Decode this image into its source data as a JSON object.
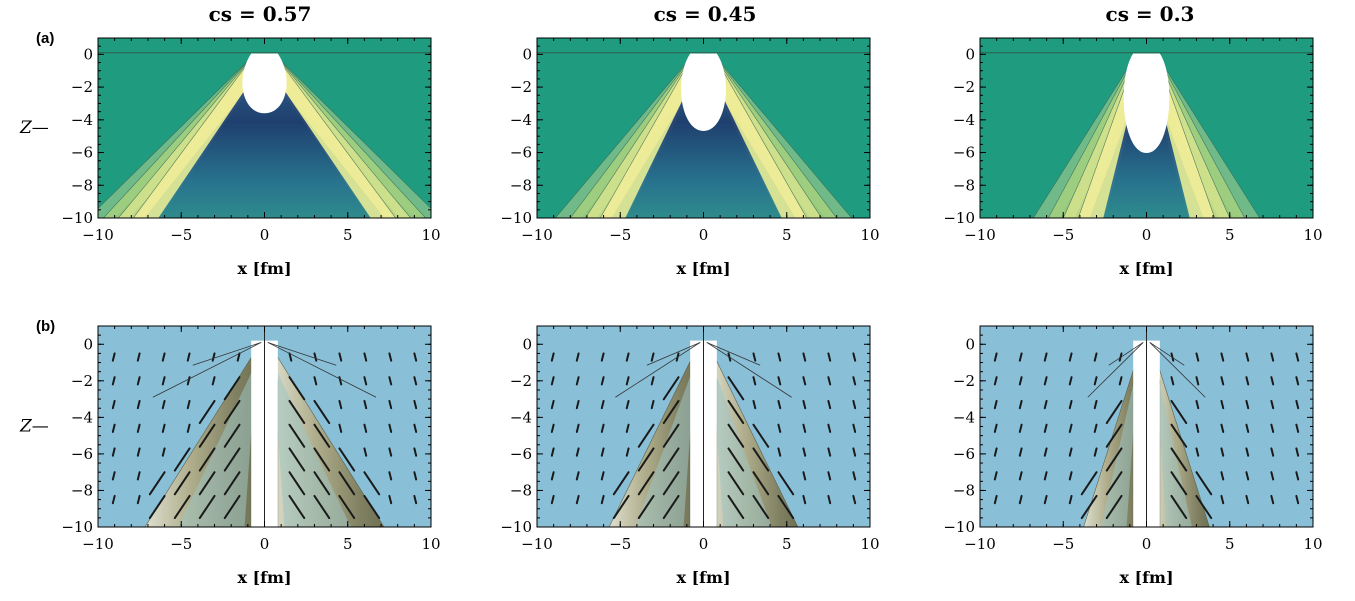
{
  "row_labels": [
    "(a)",
    "(b)"
  ],
  "chart_data": [
    {
      "type": "heatmap",
      "panel_row": "a",
      "title": "cs = 0.57",
      "xlabel": "x [fm]",
      "ylabel": "Z—",
      "xlim": [
        -10,
        10
      ],
      "ylim": [
        -10,
        1
      ],
      "x_ticks": [
        "−10",
        "−5",
        "0",
        "5",
        "10"
      ],
      "y_ticks": [
        "0",
        "−2",
        "−4",
        "−6",
        "−8",
        "−10"
      ],
      "background": "#1f9b80",
      "cs": 0.57
    },
    {
      "type": "heatmap",
      "panel_row": "a",
      "title": "cs = 0.45",
      "xlabel": "x [fm]",
      "ylabel": "",
      "xlim": [
        -10,
        10
      ],
      "ylim": [
        -10,
        1
      ],
      "x_ticks": [
        "−10",
        "−5",
        "0",
        "5",
        "10"
      ],
      "y_ticks": [
        "0",
        "−2",
        "−4",
        "−6",
        "−8",
        "−10"
      ],
      "background": "#1f9b80",
      "cs": 0.45
    },
    {
      "type": "heatmap",
      "panel_row": "a",
      "title": "cs = 0.3",
      "xlabel": "x [fm]",
      "ylabel": "",
      "xlim": [
        -10,
        10
      ],
      "ylim": [
        -10,
        1
      ],
      "x_ticks": [
        "−10",
        "−5",
        "0",
        "5",
        "10"
      ],
      "y_ticks": [
        "0",
        "−2",
        "−4",
        "−6",
        "−8",
        "−10"
      ],
      "background": "#1f9b80",
      "cs": 0.3
    },
    {
      "type": "heatmap",
      "panel_row": "b",
      "title": "",
      "xlabel": "x [fm]",
      "ylabel": "Z—",
      "xlim": [
        -10,
        10
      ],
      "ylim": [
        -10,
        1
      ],
      "x_ticks": [
        "−10",
        "−5",
        "0",
        "5",
        "10"
      ],
      "y_ticks": [
        "0",
        "−2",
        "−4",
        "−6",
        "−8",
        "−10"
      ],
      "background": "#89c0d8",
      "cs": 0.57
    },
    {
      "type": "heatmap",
      "panel_row": "b",
      "title": "",
      "xlabel": "x [fm]",
      "ylabel": "",
      "xlim": [
        -10,
        10
      ],
      "ylim": [
        -10,
        1
      ],
      "x_ticks": [
        "−10",
        "−5",
        "0",
        "5",
        "10"
      ],
      "y_ticks": [
        "0",
        "−2",
        "−4",
        "−6",
        "−8",
        "−10"
      ],
      "background": "#89c0d8",
      "cs": 0.45
    },
    {
      "type": "heatmap",
      "panel_row": "b",
      "title": "",
      "xlabel": "x [fm]",
      "ylabel": "",
      "xlim": [
        -10,
        10
      ],
      "ylim": [
        -10,
        1
      ],
      "x_ticks": [
        "−10",
        "−5",
        "0",
        "5",
        "10"
      ],
      "y_ticks": [
        "0",
        "−2",
        "−4",
        "−6",
        "−8",
        "−10"
      ],
      "background": "#89c0d8",
      "cs": 0.3
    }
  ]
}
